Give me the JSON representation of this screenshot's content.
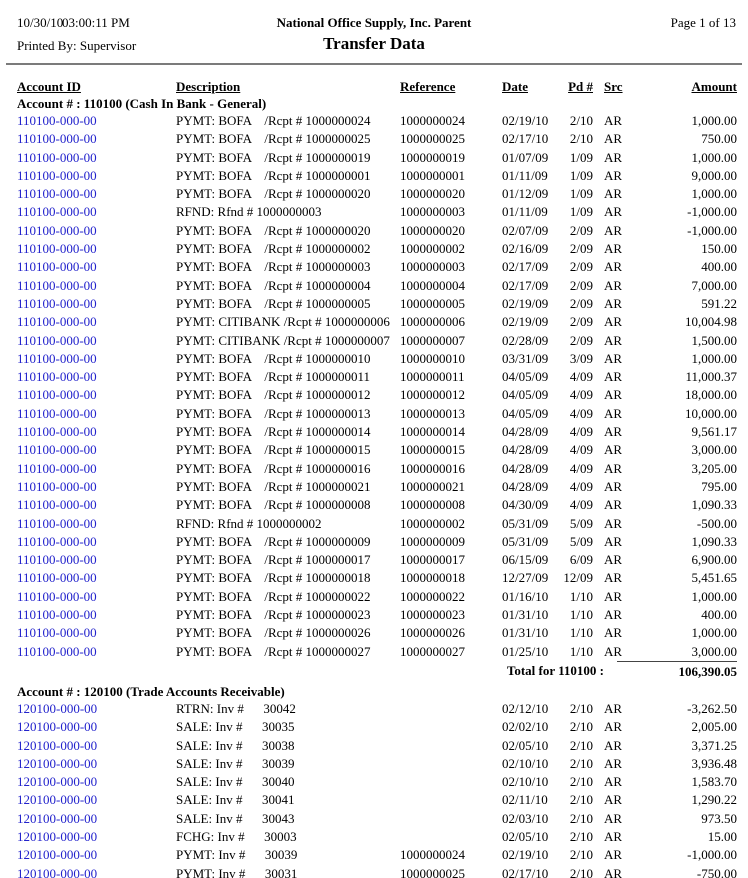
{
  "colors": {
    "link_blue": "#2222CC"
  },
  "header": {
    "date": "10/30/10",
    "time": "03:00:11 PM",
    "company": "National Office Supply, Inc. Parent",
    "page_info": "Page 1 of 13",
    "printed_by": "Printed By: Supervisor",
    "title": "Transfer Data"
  },
  "table": {
    "columns": [
      "Account ID",
      "Description",
      "Reference",
      "Date",
      "Pd #",
      "Src",
      "Amount"
    ],
    "sections": [
      {
        "heading": "Account # : 110100 (Cash In Bank - General)",
        "rows": [
          {
            "account_id": "110100-000-00",
            "description": "PYMT: BOFA    /Rcpt # 1000000024",
            "reference": "1000000024",
            "date": "02/19/10",
            "pd": "2/10",
            "src": "AR",
            "amount": "1,000.00"
          },
          {
            "account_id": "110100-000-00",
            "description": "PYMT: BOFA    /Rcpt # 1000000025",
            "reference": "1000000025",
            "date": "02/17/10",
            "pd": "2/10",
            "src": "AR",
            "amount": "750.00"
          },
          {
            "account_id": "110100-000-00",
            "description": "PYMT: BOFA    /Rcpt # 1000000019",
            "reference": "1000000019",
            "date": "01/07/09",
            "pd": "1/09",
            "src": "AR",
            "amount": "1,000.00"
          },
          {
            "account_id": "110100-000-00",
            "description": "PYMT: BOFA    /Rcpt # 1000000001",
            "reference": "1000000001",
            "date": "01/11/09",
            "pd": "1/09",
            "src": "AR",
            "amount": "9,000.00"
          },
          {
            "account_id": "110100-000-00",
            "description": "PYMT: BOFA    /Rcpt # 1000000020",
            "reference": "1000000020",
            "date": "01/12/09",
            "pd": "1/09",
            "src": "AR",
            "amount": "1,000.00"
          },
          {
            "account_id": "110100-000-00",
            "description": "RFND: Rfnd # 1000000003",
            "reference": "1000000003",
            "date": "01/11/09",
            "pd": "1/09",
            "src": "AR",
            "amount": "-1,000.00"
          },
          {
            "account_id": "110100-000-00",
            "description": "PYMT: BOFA    /Rcpt # 1000000020",
            "reference": "1000000020",
            "date": "02/07/09",
            "pd": "2/09",
            "src": "AR",
            "amount": "-1,000.00"
          },
          {
            "account_id": "110100-000-00",
            "description": "PYMT: BOFA    /Rcpt # 1000000002",
            "reference": "1000000002",
            "date": "02/16/09",
            "pd": "2/09",
            "src": "AR",
            "amount": "150.00"
          },
          {
            "account_id": "110100-000-00",
            "description": "PYMT: BOFA    /Rcpt # 1000000003",
            "reference": "1000000003",
            "date": "02/17/09",
            "pd": "2/09",
            "src": "AR",
            "amount": "400.00"
          },
          {
            "account_id": "110100-000-00",
            "description": "PYMT: BOFA    /Rcpt # 1000000004",
            "reference": "1000000004",
            "date": "02/17/09",
            "pd": "2/09",
            "src": "AR",
            "amount": "7,000.00"
          },
          {
            "account_id": "110100-000-00",
            "description": "PYMT: BOFA    /Rcpt # 1000000005",
            "reference": "1000000005",
            "date": "02/19/09",
            "pd": "2/09",
            "src": "AR",
            "amount": "591.22"
          },
          {
            "account_id": "110100-000-00",
            "description": "PYMT: CITIBANK /Rcpt # 1000000006",
            "reference": "1000000006",
            "date": "02/19/09",
            "pd": "2/09",
            "src": "AR",
            "amount": "10,004.98"
          },
          {
            "account_id": "110100-000-00",
            "description": "PYMT: CITIBANK /Rcpt # 1000000007",
            "reference": "1000000007",
            "date": "02/28/09",
            "pd": "2/09",
            "src": "AR",
            "amount": "1,500.00"
          },
          {
            "account_id": "110100-000-00",
            "description": "PYMT: BOFA    /Rcpt # 1000000010",
            "reference": "1000000010",
            "date": "03/31/09",
            "pd": "3/09",
            "src": "AR",
            "amount": "1,000.00"
          },
          {
            "account_id": "110100-000-00",
            "description": "PYMT: BOFA    /Rcpt # 1000000011",
            "reference": "1000000011",
            "date": "04/05/09",
            "pd": "4/09",
            "src": "AR",
            "amount": "11,000.37"
          },
          {
            "account_id": "110100-000-00",
            "description": "PYMT: BOFA    /Rcpt # 1000000012",
            "reference": "1000000012",
            "date": "04/05/09",
            "pd": "4/09",
            "src": "AR",
            "amount": "18,000.00"
          },
          {
            "account_id": "110100-000-00",
            "description": "PYMT: BOFA    /Rcpt # 1000000013",
            "reference": "1000000013",
            "date": "04/05/09",
            "pd": "4/09",
            "src": "AR",
            "amount": "10,000.00"
          },
          {
            "account_id": "110100-000-00",
            "description": "PYMT: BOFA    /Rcpt # 1000000014",
            "reference": "1000000014",
            "date": "04/28/09",
            "pd": "4/09",
            "src": "AR",
            "amount": "9,561.17"
          },
          {
            "account_id": "110100-000-00",
            "description": "PYMT: BOFA    /Rcpt # 1000000015",
            "reference": "1000000015",
            "date": "04/28/09",
            "pd": "4/09",
            "src": "AR",
            "amount": "3,000.00"
          },
          {
            "account_id": "110100-000-00",
            "description": "PYMT: BOFA    /Rcpt # 1000000016",
            "reference": "1000000016",
            "date": "04/28/09",
            "pd": "4/09",
            "src": "AR",
            "amount": "3,205.00"
          },
          {
            "account_id": "110100-000-00",
            "description": "PYMT: BOFA    /Rcpt # 1000000021",
            "reference": "1000000021",
            "date": "04/28/09",
            "pd": "4/09",
            "src": "AR",
            "amount": "795.00"
          },
          {
            "account_id": "110100-000-00",
            "description": "PYMT: BOFA    /Rcpt # 1000000008",
            "reference": "1000000008",
            "date": "04/30/09",
            "pd": "4/09",
            "src": "AR",
            "amount": "1,090.33"
          },
          {
            "account_id": "110100-000-00",
            "description": "RFND: Rfnd # 1000000002",
            "reference": "1000000002",
            "date": "05/31/09",
            "pd": "5/09",
            "src": "AR",
            "amount": "-500.00"
          },
          {
            "account_id": "110100-000-00",
            "description": "PYMT: BOFA    /Rcpt # 1000000009",
            "reference": "1000000009",
            "date": "05/31/09",
            "pd": "5/09",
            "src": "AR",
            "amount": "1,090.33"
          },
          {
            "account_id": "110100-000-00",
            "description": "PYMT: BOFA    /Rcpt # 1000000017",
            "reference": "1000000017",
            "date": "06/15/09",
            "pd": "6/09",
            "src": "AR",
            "amount": "6,900.00"
          },
          {
            "account_id": "110100-000-00",
            "description": "PYMT: BOFA    /Rcpt # 1000000018",
            "reference": "1000000018",
            "date": "12/27/09",
            "pd": "12/09",
            "src": "AR",
            "amount": "5,451.65"
          },
          {
            "account_id": "110100-000-00",
            "description": "PYMT: BOFA    /Rcpt # 1000000022",
            "reference": "1000000022",
            "date": "01/16/10",
            "pd": "1/10",
            "src": "AR",
            "amount": "1,000.00"
          },
          {
            "account_id": "110100-000-00",
            "description": "PYMT: BOFA    /Rcpt # 1000000023",
            "reference": "1000000023",
            "date": "01/31/10",
            "pd": "1/10",
            "src": "AR",
            "amount": "400.00"
          },
          {
            "account_id": "110100-000-00",
            "description": "PYMT: BOFA    /Rcpt # 1000000026",
            "reference": "1000000026",
            "date": "01/31/10",
            "pd": "1/10",
            "src": "AR",
            "amount": "1,000.00"
          },
          {
            "account_id": "110100-000-00",
            "description": "PYMT: BOFA    /Rcpt # 1000000027",
            "reference": "1000000027",
            "date": "01/25/10",
            "pd": "1/10",
            "src": "AR",
            "amount": "3,000.00"
          }
        ],
        "total_label": "Total for 110100 :",
        "total_amount": "106,390.05"
      },
      {
        "heading": "Account # : 120100 (Trade Accounts Receivable)",
        "rows": [
          {
            "account_id": "120100-000-00",
            "description": "RTRN: Inv #      30042",
            "reference": "",
            "date": "02/12/10",
            "pd": "2/10",
            "src": "AR",
            "amount": "-3,262.50"
          },
          {
            "account_id": "120100-000-00",
            "description": "SALE: Inv #      30035",
            "reference": "",
            "date": "02/02/10",
            "pd": "2/10",
            "src": "AR",
            "amount": "2,005.00"
          },
          {
            "account_id": "120100-000-00",
            "description": "SALE: Inv #      30038",
            "reference": "",
            "date": "02/05/10",
            "pd": "2/10",
            "src": "AR",
            "amount": "3,371.25"
          },
          {
            "account_id": "120100-000-00",
            "description": "SALE: Inv #      30039",
            "reference": "",
            "date": "02/10/10",
            "pd": "2/10",
            "src": "AR",
            "amount": "3,936.48"
          },
          {
            "account_id": "120100-000-00",
            "description": "SALE: Inv #      30040",
            "reference": "",
            "date": "02/10/10",
            "pd": "2/10",
            "src": "AR",
            "amount": "1,583.70"
          },
          {
            "account_id": "120100-000-00",
            "description": "SALE: Inv #      30041",
            "reference": "",
            "date": "02/11/10",
            "pd": "2/10",
            "src": "AR",
            "amount": "1,290.22"
          },
          {
            "account_id": "120100-000-00",
            "description": "SALE: Inv #      30043",
            "reference": "",
            "date": "02/03/10",
            "pd": "2/10",
            "src": "AR",
            "amount": "973.50"
          },
          {
            "account_id": "120100-000-00",
            "description": "FCHG: Inv #      30003",
            "reference": "",
            "date": "02/05/10",
            "pd": "2/10",
            "src": "AR",
            "amount": "15.00"
          },
          {
            "account_id": "120100-000-00",
            "description": "PYMT: Inv #      30039",
            "reference": "1000000024",
            "date": "02/19/10",
            "pd": "2/10",
            "src": "AR",
            "amount": "-1,000.00"
          },
          {
            "account_id": "120100-000-00",
            "description": "PYMT: Inv #      30031",
            "reference": "1000000025",
            "date": "02/17/10",
            "pd": "2/10",
            "src": "AR",
            "amount": "-750.00"
          }
        ]
      }
    ]
  }
}
